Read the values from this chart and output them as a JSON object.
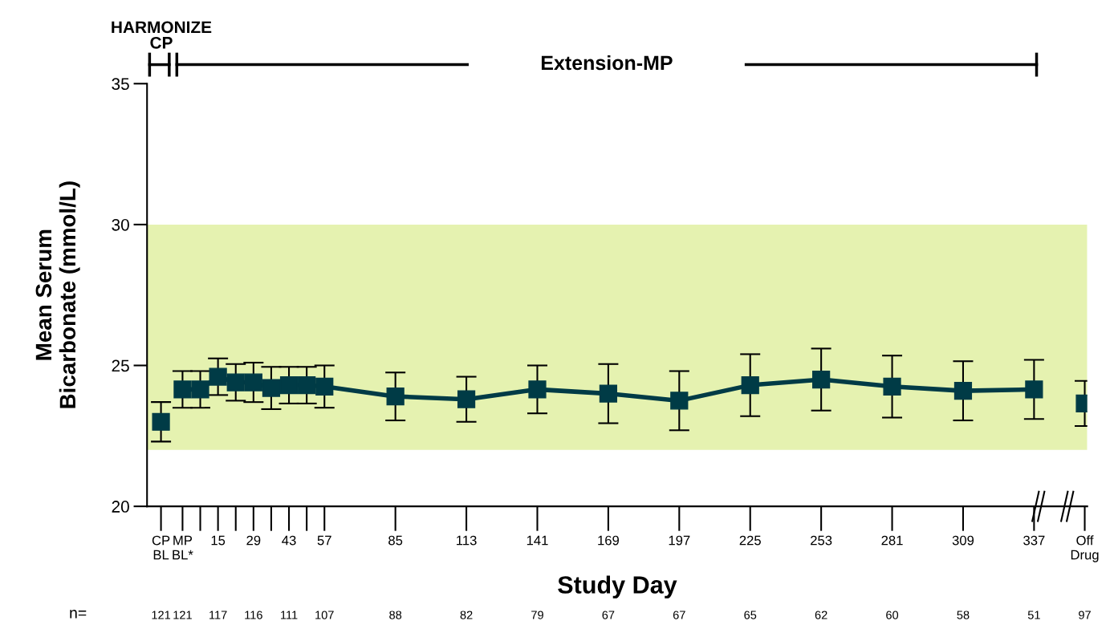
{
  "chart_data": {
    "type": "line",
    "xlabel": "Study Day",
    "ylabel": "Mean Serum\nBicarbonate (mmol/L)",
    "xlim": [
      -13,
      358
    ],
    "ylim": [
      20,
      35
    ],
    "yticks": [
      20,
      25,
      30,
      35
    ],
    "xticks": [
      {
        "value": -7.5,
        "label": "CP\nBL"
      },
      {
        "value": 1,
        "label": "MP\nBL*"
      },
      15,
      29,
      43,
      57,
      85,
      113,
      141,
      169,
      197,
      225,
      253,
      281,
      309,
      337,
      {
        "value": 357,
        "label": "Off\nDrug"
      }
    ],
    "marker": "square",
    "grid": false,
    "line_style": "solid",
    "series": [
      {
        "type": "scatter",
        "color": "#003b46",
        "x": [
          -7.5
        ],
        "values": [
          23.0
        ],
        "errors": [
          0.7
        ]
      },
      {
        "type": "line",
        "color": "#003b46",
        "x": [
          1,
          8,
          15,
          22,
          29,
          36,
          43,
          50,
          57,
          85,
          113,
          141,
          169,
          197,
          225,
          253,
          281,
          309,
          337
        ],
        "values": [
          24.15,
          24.15,
          24.6,
          24.4,
          24.4,
          24.2,
          24.3,
          24.3,
          24.25,
          23.9,
          23.8,
          24.15,
          24.0,
          23.75,
          24.3,
          24.5,
          24.25,
          24.1,
          24.15
        ],
        "errors": [
          0.65,
          0.65,
          0.65,
          0.65,
          0.7,
          0.75,
          0.65,
          0.65,
          0.75,
          0.85,
          0.8,
          0.85,
          1.05,
          1.05,
          1.1,
          1.1,
          1.1,
          1.05,
          1.05
        ]
      },
      {
        "type": "scatter",
        "color": "#003b46",
        "x": [
          357
        ],
        "values": [
          23.65
        ],
        "errors": [
          0.8
        ]
      }
    ],
    "bands": [
      {
        "axis": "y",
        "from": 22,
        "to": 30,
        "color": "#e5f2b0"
      }
    ],
    "annotations": [
      "HARMONIZE\nCP",
      "Extension-MP",
      "n=",
      "121",
      "121",
      "117",
      "116",
      "111",
      "107",
      "88",
      "82",
      "79",
      "67",
      "67",
      "65",
      "62",
      "60",
      "58",
      "51",
      "97"
    ]
  }
}
